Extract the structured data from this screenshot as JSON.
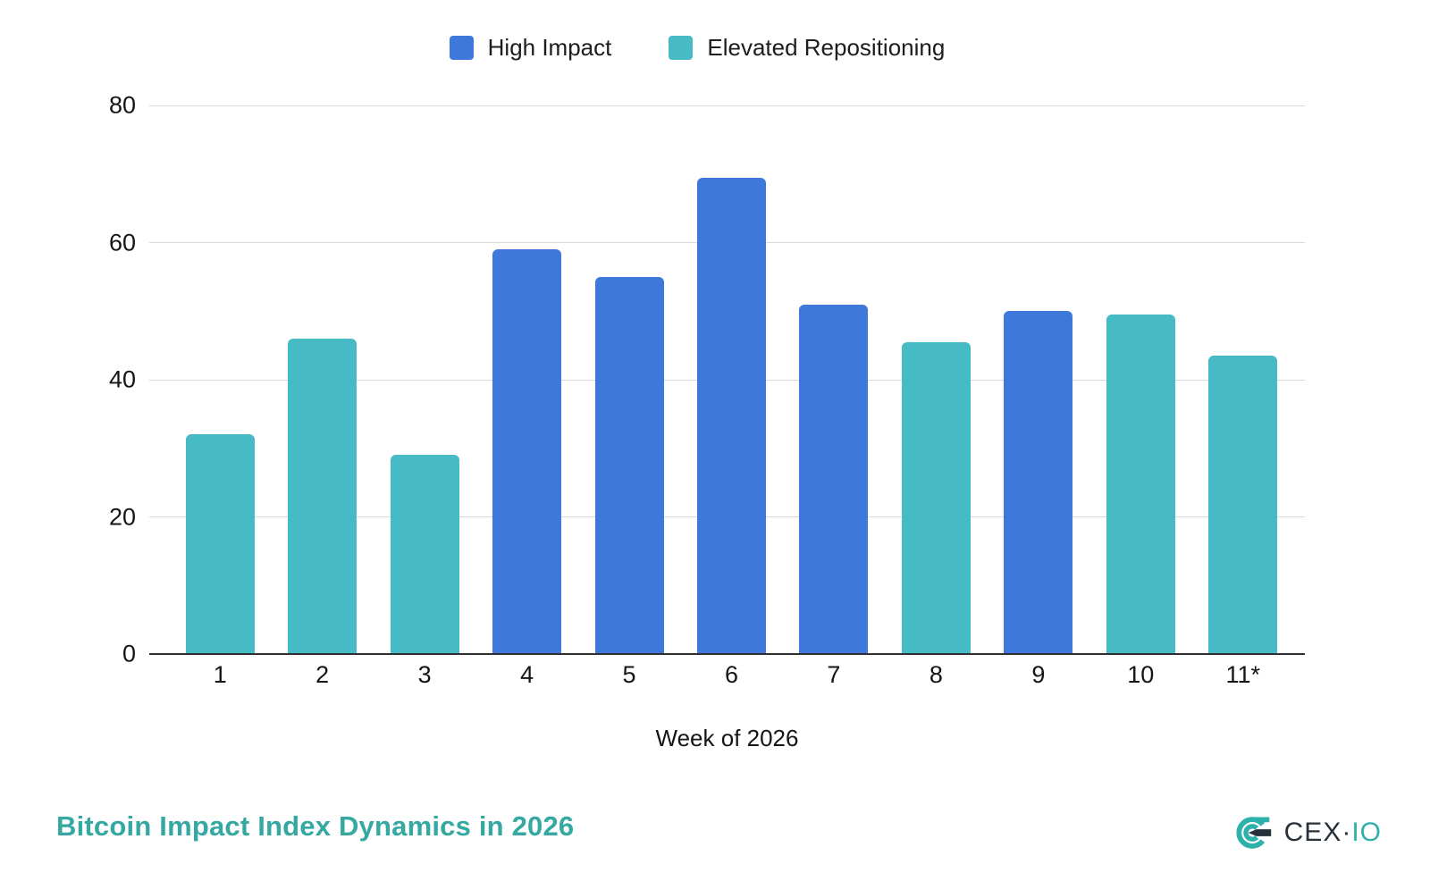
{
  "chart_data": {
    "type": "bar",
    "title": "Bitcoin Impact Index Dynamics in 2026",
    "title_color": "#35A8A1",
    "xlabel": "Week of 2026",
    "ylim": [
      0,
      80
    ],
    "y_ticks": [
      0,
      20,
      40,
      60,
      80
    ],
    "grid": true,
    "legend_position": "top-center",
    "gridline_color": "#d9d9d9",
    "categories": [
      "1",
      "2",
      "3",
      "4",
      "5",
      "6",
      "7",
      "8",
      "9",
      "10",
      "11*"
    ],
    "series": [
      {
        "name": "High Impact",
        "color": "#3E78DA"
      },
      {
        "name": "Elevated Repositioning",
        "color": "#46BAC5"
      }
    ],
    "bars": [
      {
        "week": "1",
        "value": 32,
        "series": "Elevated Repositioning"
      },
      {
        "week": "2",
        "value": 46,
        "series": "Elevated Repositioning"
      },
      {
        "week": "3",
        "value": 29,
        "series": "Elevated Repositioning"
      },
      {
        "week": "4",
        "value": 59,
        "series": "High Impact"
      },
      {
        "week": "5",
        "value": 55,
        "series": "High Impact"
      },
      {
        "week": "6",
        "value": 69.5,
        "series": "High Impact"
      },
      {
        "week": "7",
        "value": 51,
        "series": "High Impact"
      },
      {
        "week": "8",
        "value": 45.5,
        "series": "Elevated Repositioning"
      },
      {
        "week": "9",
        "value": 50,
        "series": "High Impact"
      },
      {
        "week": "10",
        "value": 49.5,
        "series": "Elevated Repositioning"
      },
      {
        "week": "11*",
        "value": 43.5,
        "series": "Elevated Repositioning"
      }
    ]
  },
  "footer": {
    "logo": {
      "text_primary": "CEX",
      "separator": "·",
      "text_secondary": "IO",
      "text_primary_color": "#27313C",
      "separator_color": "#27313C",
      "text_secondary_color": "#2EB1AB",
      "mark_teal": "#2EB1AB",
      "mark_dark": "#27313C"
    }
  }
}
